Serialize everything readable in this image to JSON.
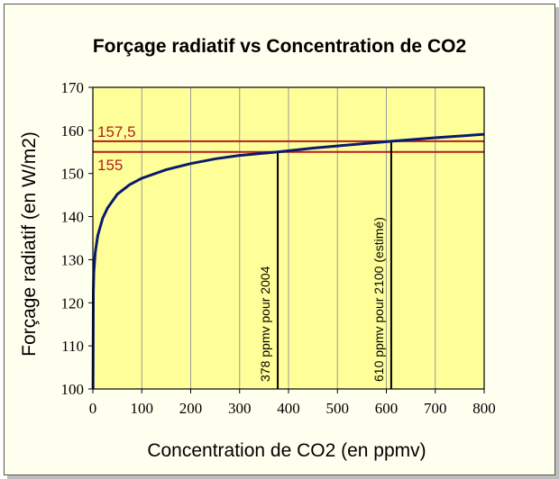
{
  "chart_data": {
    "type": "line",
    "title": "Forçage radiatif vs Concentration de CO2",
    "xlabel": "Concentration de CO2 (en ppmv)",
    "ylabel": "Forçage radiatif (en W/m2)",
    "xlim": [
      0,
      800
    ],
    "ylim": [
      100,
      170
    ],
    "xticks": [
      0,
      100,
      200,
      300,
      400,
      500,
      600,
      700,
      800
    ],
    "yticks": [
      100,
      110,
      120,
      130,
      140,
      150,
      160,
      170
    ],
    "grid": "vertical",
    "series": [
      {
        "name": "Forçage radiatif",
        "color": "#0a1a6e",
        "x": [
          0.3,
          1,
          2,
          5,
          10,
          20,
          30,
          50,
          75,
          100,
          150,
          200,
          250,
          300,
          378,
          450,
          500,
          610,
          700,
          800
        ],
        "y": [
          100.0,
          122.5,
          127.2,
          131.8,
          135.6,
          139.6,
          142.0,
          145.2,
          147.4,
          148.9,
          150.9,
          152.3,
          153.4,
          154.2,
          155.0,
          155.9,
          156.4,
          157.5,
          158.3,
          159.1
        ]
      }
    ],
    "reference_lines": [
      {
        "axis": "y",
        "value": 157.5,
        "label": "157,5",
        "color": "#b02020"
      },
      {
        "axis": "y",
        "value": 155,
        "label": "155",
        "color": "#b02020"
      }
    ],
    "annotations": [
      {
        "x": 378,
        "text": "378 ppmv pour 2004"
      },
      {
        "x": 610,
        "text": "610 ppmv pour 2100 (estimé)"
      }
    ],
    "plot_background": "#ffff99"
  }
}
